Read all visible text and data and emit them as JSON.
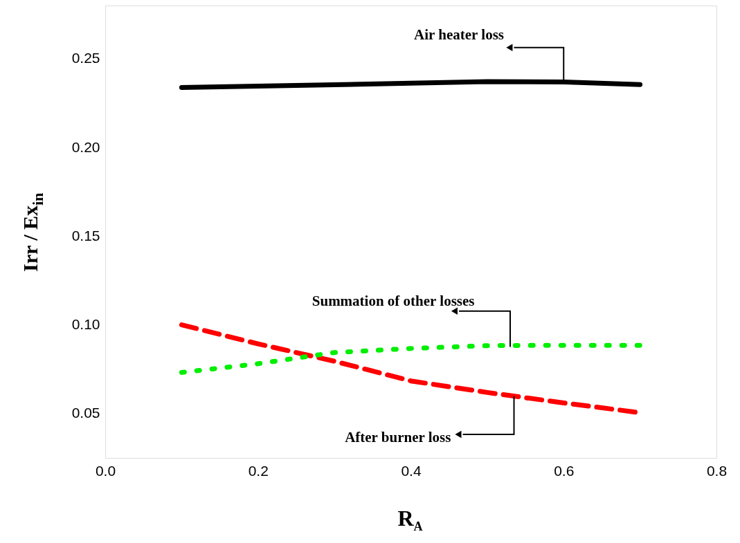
{
  "chart_data": {
    "type": "line",
    "xlabel": "R$_{A}$",
    "ylabel": "Irr / Ex$_{in}$",
    "x": [
      0.1,
      0.2,
      0.3,
      0.4,
      0.5,
      0.6,
      0.7
    ],
    "series": [
      {
        "color": "#000000",
        "line_style": "solid",
        "values": [
          0.2338,
          0.2346,
          0.2354,
          0.2362,
          0.2371,
          0.2369,
          0.2355
        ]
      },
      {
        "color": "#ff0000",
        "line_style": "dashed",
        "values": [
          0.1,
          0.0893,
          0.0795,
          0.0684,
          0.0619,
          0.056,
          0.0505
        ]
      },
      {
        "color": "#00ee00",
        "line_style": "dotted",
        "values": [
          0.0732,
          0.0781,
          0.0844,
          0.0867,
          0.0883,
          0.0885,
          0.0885
        ]
      }
    ],
    "annotations": [
      {
        "text": "Air heater loss",
        "x": 0.6,
        "y": 0.237
      },
      {
        "text": "Summation of  other losses",
        "x": 0.53,
        "y": 0.0876
      },
      {
        "text": "After burner loss",
        "x": 0.535,
        "y": 0.0598
      }
    ],
    "xlim": [
      0.0,
      0.8
    ],
    "ylim": [
      0.025,
      0.28
    ],
    "xticks": [
      {
        "value": 0,
        "label": "0.0"
      },
      0.2,
      0.4,
      0.6,
      0.8
    ],
    "yticks": [
      0.05,
      {
        "value": 0.1,
        "label": "0.10"
      },
      0.15,
      {
        "value": 0.2,
        "label": "0.20"
      },
      0.25
    ],
    "grid": false,
    "marker": "none"
  }
}
